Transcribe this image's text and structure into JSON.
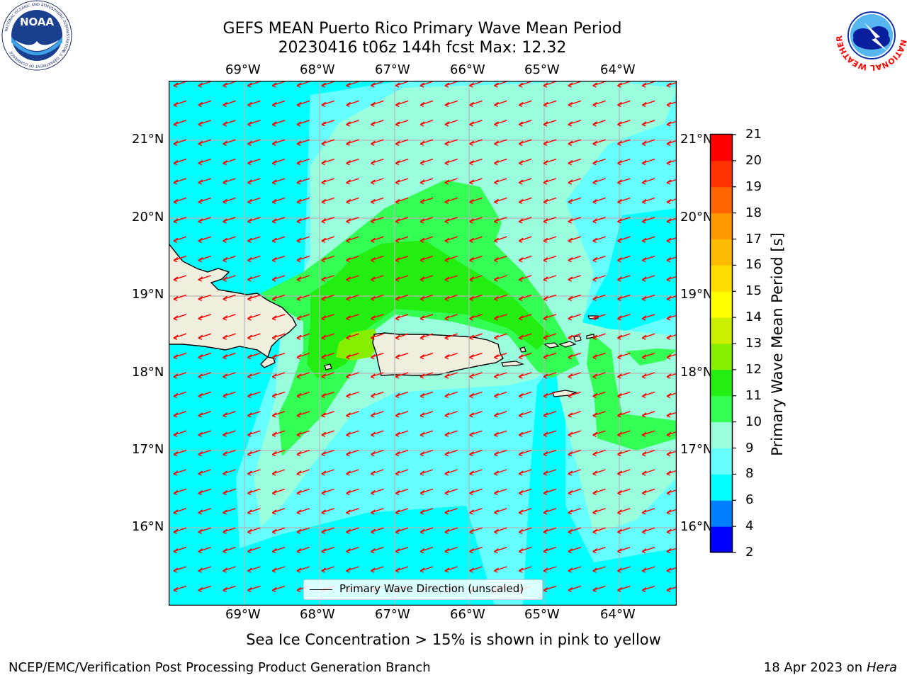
{
  "header": {
    "title_line1": "GEFS MEAN Puerto Rico Primary Wave Mean Period",
    "title_line2": "20230416 t06z 144h fcst   Max: 12.32"
  },
  "logos": {
    "left": {
      "text": "NOAA",
      "ring_text": "NATIONAL OCEANIC AND ATMOSPHERIC ADMINISTRATION",
      "bottom_text": "U.S. DEPARTMENT OF COMMERCE"
    },
    "right": {
      "ring_text": "NATIONAL WEATHER SERVICE"
    }
  },
  "map": {
    "lon_labels": [
      "69°W",
      "68°W",
      "67°W",
      "66°W",
      "65°W",
      "64°W"
    ],
    "lat_labels": [
      "21°N",
      "20°N",
      "19°N",
      "18°N",
      "17°N",
      "16°N"
    ],
    "legend_label": "Primary Wave Direction (unscaled)",
    "wave_direction": "southwest",
    "colors": {
      "ocean": "#00ffff",
      "land": "#f0eedc",
      "arrow": "#ff0000",
      "grid": "#b4b4b4"
    }
  },
  "colorbar": {
    "label": "Primary Wave Mean Period [s]",
    "ticks": [
      "2",
      "4",
      "6",
      "8",
      "9",
      "10",
      "11",
      "12",
      "13",
      "14",
      "15",
      "16",
      "17",
      "18",
      "19",
      "20",
      "21"
    ],
    "colors": [
      "#0000ff",
      "#0080ff",
      "#00ffff",
      "#66ffff",
      "#99ffdd",
      "#33ff55",
      "#22ee11",
      "#88ee00",
      "#ccee00",
      "#ffff00",
      "#ffdd00",
      "#ffbb00",
      "#ff9900",
      "#ff6600",
      "#ff3300",
      "#ff0000"
    ]
  },
  "notes": {
    "sea_ice": "Sea Ice Concentration > 15% is shown in pink to yellow"
  },
  "footer": {
    "left": "NCEP/EMC/Verification Post Processing Product Generation Branch",
    "date": "18 Apr 2023 on",
    "machine": "Hera"
  }
}
